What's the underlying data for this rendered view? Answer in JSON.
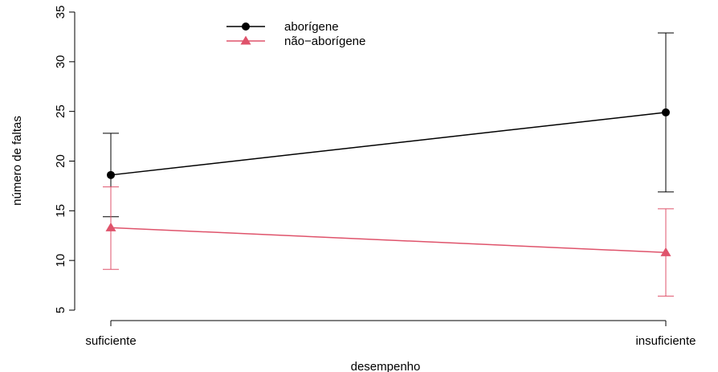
{
  "chart_data": {
    "type": "line",
    "title": "",
    "xlabel": "desempenho",
    "ylabel": "número de faltas",
    "categories": [
      "suficiente",
      "insuficiente"
    ],
    "ylim": [
      5,
      35
    ],
    "yticks": [
      5,
      10,
      15,
      20,
      25,
      30,
      35
    ],
    "grid": false,
    "legend": "top-center",
    "series": [
      {
        "name": "aborígene",
        "color": "#000000",
        "marker": "circle",
        "values": [
          18.6,
          24.9
        ],
        "lower": [
          14.4,
          16.9
        ],
        "upper": [
          22.8,
          32.9
        ]
      },
      {
        "name": "não−aborígene",
        "color": "#DF536B",
        "marker": "triangle",
        "values": [
          13.3,
          10.8
        ],
        "lower": [
          9.1,
          6.4
        ],
        "upper": [
          17.4,
          15.2
        ]
      }
    ]
  }
}
